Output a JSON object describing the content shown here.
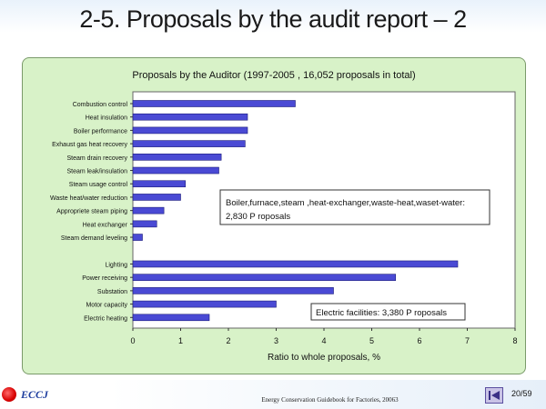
{
  "slide": {
    "title": "2-5. Proposals by the audit report – 2",
    "source": "Energy Conservation Guidebook for Factories, 20063",
    "page": "20/59",
    "logo_text": "ECCJ"
  },
  "chart_data": {
    "type": "bar",
    "orientation": "horizontal",
    "title": "Proposals by the Auditor (1997-2005 , 16,052 proposals in total)",
    "xlabel": "Ratio to whole proposals, %",
    "ylabel": "",
    "xlim": [
      0,
      8
    ],
    "xticks": [
      "0",
      "1",
      "2",
      "3",
      "4",
      "5",
      "6",
      "7",
      "8"
    ],
    "grid": false,
    "bar_color": "#4a4ad4",
    "groups": [
      {
        "categories": [
          "Combustion control",
          "Heat insulation",
          "Boiler performance",
          "Exhaust gas heat recovery",
          "Steam drain recovery",
          "Steam leak/insulation",
          "Steam usage control",
          "Waste heat/water reduction",
          "Appropriete steam piping",
          "Heat exchanger",
          "Steam demand leveling"
        ],
        "values": [
          3.4,
          2.4,
          2.4,
          2.35,
          1.85,
          1.8,
          1.1,
          1.0,
          0.65,
          0.5,
          0.2
        ],
        "annotation": [
          "Boiler,furnace,steam ,heat-exchanger,waste-heat,waset-water:",
          "2,830 P roposals"
        ]
      },
      {
        "categories": [
          "Lighting",
          "Power receiving",
          "Substation",
          "Motor capacity",
          "Electric heating"
        ],
        "values": [
          6.8,
          5.5,
          4.2,
          3.0,
          1.6
        ],
        "annotation": [
          "Electric facilities: 3,380 P roposals"
        ]
      }
    ]
  }
}
